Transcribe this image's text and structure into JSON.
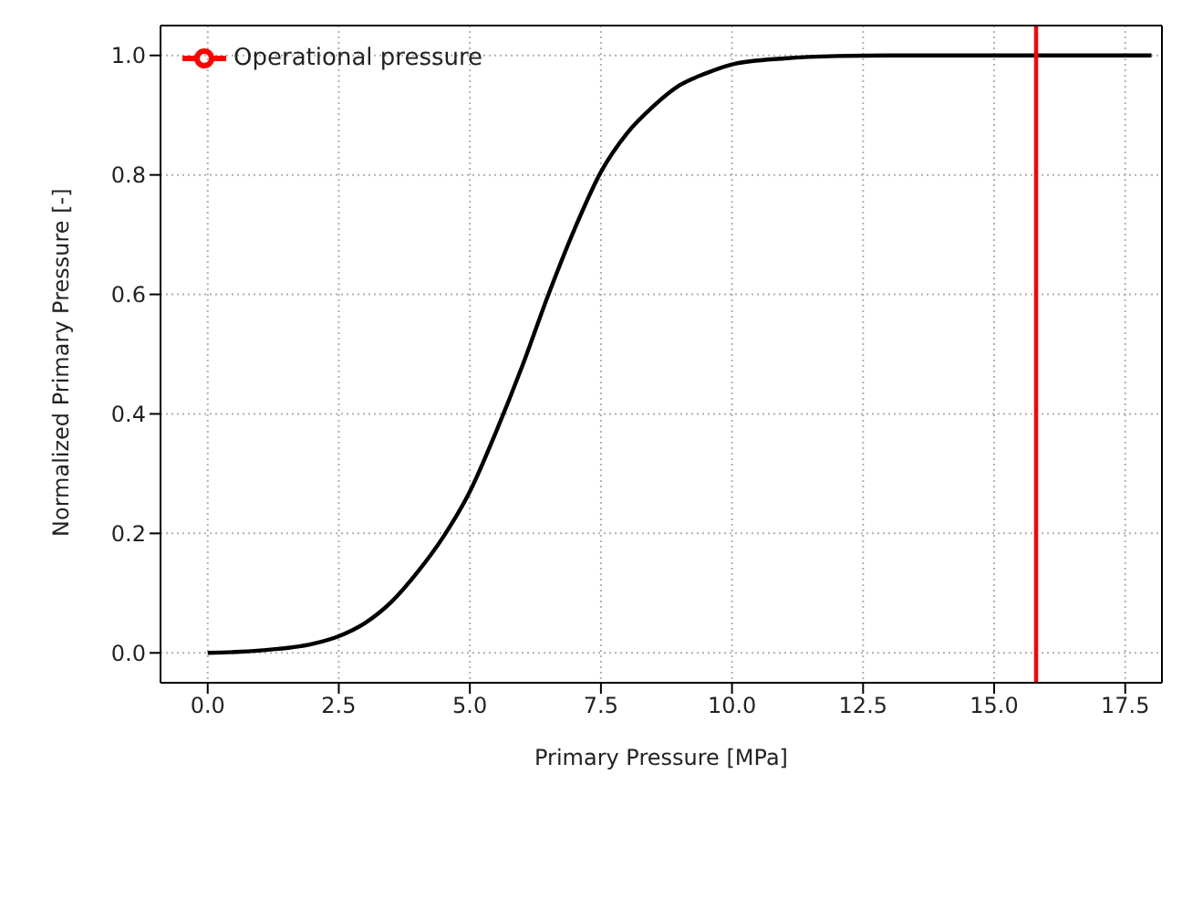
{
  "chart_data": {
    "type": "line",
    "xlabel": "Primary Pressure [MPa]",
    "ylabel": "Normalized Primary Pressure [-]",
    "x": [
      0,
      1,
      2,
      2.5,
      3,
      3.5,
      4,
      4.5,
      5,
      5.5,
      6,
      6.5,
      7,
      7.5,
      8,
      8.5,
      9,
      9.5,
      10,
      11,
      12,
      13,
      15,
      18
    ],
    "series": [
      {
        "color": "#000000",
        "values": [
          0,
          0.004,
          0.015,
          0.028,
          0.05,
          0.085,
          0.135,
          0.195,
          0.27,
          0.37,
          0.48,
          0.6,
          0.71,
          0.805,
          0.87,
          0.915,
          0.95,
          0.97,
          0.985,
          0.995,
          0.999,
          1,
          1,
          1
        ]
      },
      {
        "type": "line",
        "name": "Operational pressure",
        "color": "#ff0000",
        "x": [
          15.8,
          15.8
        ],
        "values": [
          -0.05,
          1.05
        ]
      }
    ],
    "xlim": [
      -0.9,
      18.2
    ],
    "xticks": [
      {
        "value": 0,
        "label": "0.0"
      },
      {
        "value": 2.5,
        "label": "2.5"
      },
      {
        "value": 5,
        "label": "5.0"
      },
      {
        "value": 7.5,
        "label": "7.5"
      },
      {
        "value": 10,
        "label": "10.0"
      },
      {
        "value": 12.5,
        "label": "12.5"
      },
      {
        "value": 15,
        "label": "15.0"
      },
      {
        "value": 17.5,
        "label": "17.5"
      }
    ],
    "ylim": [
      -0.05,
      1.05
    ],
    "yticks": [
      {
        "value": 0,
        "label": "0.0"
      },
      {
        "value": 0.2,
        "label": "0.2"
      },
      {
        "value": 0.4,
        "label": "0.4"
      },
      {
        "value": 0.6,
        "label": "0.6"
      },
      {
        "value": 0.8,
        "label": "0.8"
      },
      {
        "value": 1,
        "label": "1.0"
      }
    ],
    "grid": true,
    "legend": "top left",
    "marker": "none",
    "line_style": "solid"
  }
}
